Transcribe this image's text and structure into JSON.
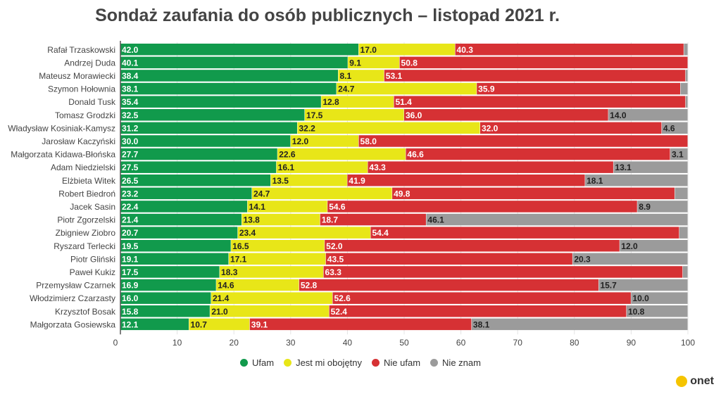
{
  "chart_data": {
    "type": "bar",
    "orientation": "horizontal",
    "stacked": true,
    "title": "Sondaż zaufania do osób publicznych – listopad 2021 r.",
    "xlim": [
      0,
      100
    ],
    "xticks": [
      "0",
      "10",
      "20",
      "30",
      "40",
      "50",
      "60",
      "70",
      "80",
      "90",
      "100"
    ],
    "grid": true,
    "legend_position": "bottom",
    "categories": [
      "Rafał Trzaskowski",
      "Andrzej Duda",
      "Mateusz Morawiecki",
      "Szymon Hołownia",
      "Donald Tusk",
      "Tomasz Grodzki",
      "Władysław Kosiniak-Kamysz",
      "Jarosław Kaczyński",
      "Małgorzata Kidawa-Błońska",
      "Adam Niedzielski",
      "Elżbieta Witek",
      "Robert Biedroń",
      "Jacek Sasin",
      "Piotr Zgorzelski",
      "Zbigniew Ziobro",
      "Ryszard Terlecki",
      "Piotr Gliński",
      "Paweł Kukiz",
      "Przemysław Czarnek",
      "Włodzimierz Czarzasty",
      "Krzysztof Bosak",
      "Małgorzata Gosiewska"
    ],
    "series": [
      {
        "name": "Ufam",
        "color": "#119a4c",
        "label_color": "#ffffff",
        "values": [
          42.0,
          40.1,
          38.4,
          38.1,
          35.4,
          32.5,
          31.2,
          30.0,
          27.7,
          27.5,
          26.5,
          23.2,
          22.4,
          21.4,
          20.7,
          19.5,
          19.1,
          17.5,
          16.9,
          16.0,
          15.8,
          12.1
        ]
      },
      {
        "name": "Jest mi obojętny",
        "color": "#e8e618",
        "label_color": "#222222",
        "values": [
          17.0,
          9.1,
          8.1,
          24.7,
          12.8,
          17.5,
          32.2,
          12.0,
          22.6,
          16.1,
          13.5,
          24.7,
          14.1,
          13.8,
          23.4,
          16.5,
          17.1,
          18.3,
          14.6,
          21.4,
          21.0,
          10.7
        ]
      },
      {
        "name": "Nie ufam",
        "color": "#d63134",
        "label_color": "#ffffff",
        "values": [
          40.3,
          50.8,
          53.1,
          35.9,
          51.4,
          36.0,
          32.0,
          58.0,
          46.6,
          43.3,
          41.9,
          49.8,
          54.6,
          18.7,
          54.4,
          52.0,
          43.5,
          63.3,
          52.8,
          52.6,
          52.4,
          39.1
        ]
      },
      {
        "name": "Nie znam",
        "color": "#9b9b9b",
        "label_color": "#222222",
        "values": [
          0.7,
          0.0,
          0.4,
          1.3,
          0.4,
          14.0,
          4.6,
          0.0,
          3.1,
          13.1,
          18.1,
          2.3,
          8.9,
          46.1,
          1.5,
          12.0,
          20.3,
          0.9,
          15.7,
          10.0,
          10.8,
          38.1
        ]
      }
    ],
    "min_labeled_value": 3
  },
  "brand": "onet"
}
